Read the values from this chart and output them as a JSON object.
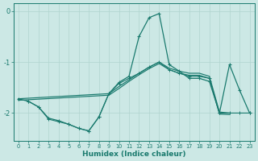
{
  "xlabel": "Humidex (Indice chaleur)",
  "background_color": "#cce8e5",
  "line_color": "#1a7a6e",
  "grid_color": "#b0d4cf",
  "ylim": [
    -2.55,
    0.15
  ],
  "yticks": [
    0,
    -1,
    -2
  ],
  "xlim": [
    -0.5,
    23.5
  ],
  "main_x": [
    0,
    1,
    2,
    3,
    4,
    5,
    6,
    7,
    8,
    9,
    10,
    11,
    12,
    13,
    14,
    15,
    16,
    17,
    18,
    19,
    20,
    21,
    22,
    23
  ],
  "main_y": [
    -1.72,
    -1.77,
    -1.88,
    -2.1,
    -2.15,
    -2.22,
    -2.3,
    -2.35,
    -2.08,
    -1.62,
    -1.4,
    -1.28,
    -0.5,
    -0.13,
    -0.05,
    -1.05,
    -1.18,
    -1.32,
    -1.32,
    -1.38,
    -2.0,
    -1.05,
    -1.55,
    -2.0
  ],
  "diag1_x": [
    0,
    9,
    10,
    11,
    12,
    13,
    14,
    15,
    16,
    17,
    18,
    19,
    20,
    21
  ],
  "diag1_y": [
    -1.72,
    -1.62,
    -1.48,
    -1.35,
    -1.22,
    -1.1,
    -1.0,
    -1.12,
    -1.18,
    -1.22,
    -1.22,
    -1.28,
    -1.98,
    -2.0
  ],
  "diag2_x": [
    0,
    9,
    10,
    11,
    12,
    13,
    14,
    15,
    16,
    17,
    18,
    19,
    20,
    21
  ],
  "diag2_y": [
    -1.75,
    -1.65,
    -1.52,
    -1.38,
    -1.25,
    -1.13,
    -1.03,
    -1.15,
    -1.22,
    -1.26,
    -1.26,
    -1.32,
    -2.02,
    -2.03
  ],
  "bot_x": [
    1,
    2,
    3,
    4,
    5,
    6,
    7,
    8,
    9,
    10,
    11,
    12,
    13,
    14,
    15,
    16,
    17,
    18,
    19,
    20,
    21,
    22,
    23
  ],
  "bot_y": [
    -1.77,
    -1.88,
    -2.12,
    -2.17,
    -2.22,
    -2.3,
    -2.35,
    -2.08,
    -1.62,
    -1.42,
    -1.32,
    -1.22,
    -1.1,
    -1.0,
    -1.15,
    -1.22,
    -1.28,
    -1.28,
    -1.32,
    -2.0,
    -2.0,
    -2.0,
    -2.0
  ]
}
